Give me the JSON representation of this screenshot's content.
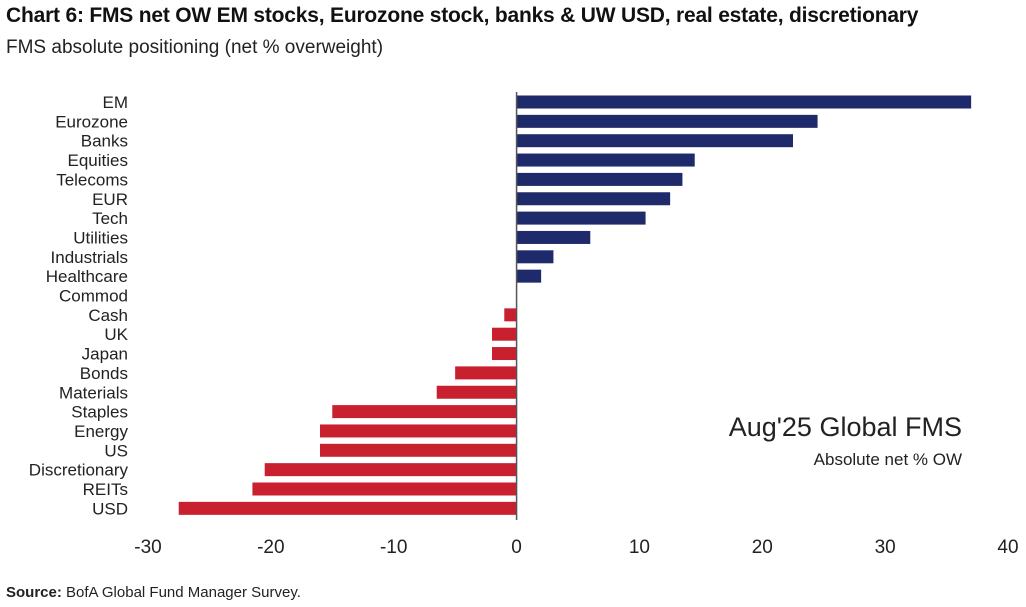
{
  "header": {
    "title": "Chart 6: FMS net OW EM stocks, Eurozone stock, banks & UW USD, real estate, discretionary",
    "subtitle": "FMS absolute positioning (net % overweight)"
  },
  "annotation": {
    "main": "Aug'25 Global FMS",
    "sub": "Absolute net % OW"
  },
  "source": {
    "label": "Source:",
    "text": "BofA Global Fund Manager Survey."
  },
  "colors": {
    "positive": "#1f2a6b",
    "negative": "#c8202e",
    "axis": "#555555"
  },
  "chart_data": {
    "type": "bar",
    "orientation": "horizontal",
    "title": "Chart 6: FMS net OW EM stocks, Eurozone stock, banks & UW USD, real estate, discretionary",
    "subtitle": "FMS absolute positioning (net % overweight)",
    "categories": [
      "EM",
      "Eurozone",
      "Banks",
      "Equities",
      "Telecoms",
      "EUR",
      "Tech",
      "Utilities",
      "Industrials",
      "Healthcare",
      "Commod",
      "Cash",
      "UK",
      "Japan",
      "Bonds",
      "Materials",
      "Staples",
      "Energy",
      "US",
      "Discretionary",
      "REITs",
      "USD"
    ],
    "values": [
      37,
      24.5,
      22.5,
      14.5,
      13.5,
      12.5,
      10.5,
      6,
      3,
      2,
      0,
      -1,
      -2,
      -2,
      -5,
      -6.5,
      -15,
      -16,
      -16,
      -20.5,
      -21.5,
      -27.5
    ],
    "xlim": [
      -30,
      40
    ],
    "xticks": [
      -30,
      -20,
      -10,
      0,
      10,
      20,
      30,
      40
    ],
    "xlabel": "",
    "ylabel": ""
  }
}
